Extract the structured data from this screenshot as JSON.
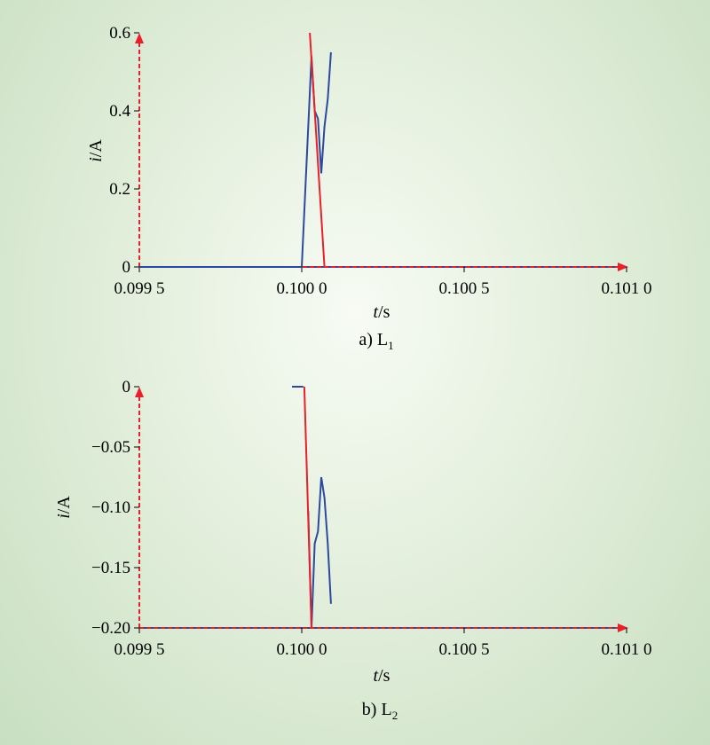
{
  "colors": {
    "series_blue": "#2b4a9e",
    "series_red": "#e8202a",
    "axis_arrow": "#e8202a"
  },
  "chart_data": [
    {
      "type": "line",
      "id": "a",
      "caption": "a) L",
      "caption_sub": "1",
      "xlabel_italic": "t",
      "xlabel_unit": "/s",
      "ylabel_italic": "i",
      "ylabel_unit": "/A",
      "xlim": [
        0.0995,
        0.101
      ],
      "ylim": [
        0,
        0.6
      ],
      "x_ticks": [
        0.0995,
        0.1,
        0.1005,
        0.101
      ],
      "x_tick_labels": [
        "0.099 5",
        "0.100 0",
        "0.100 5",
        "0.101 0"
      ],
      "y_ticks": [
        0,
        0.2,
        0.4,
        0.6
      ],
      "y_tick_labels": [
        "0",
        "0.2",
        "0.4",
        "0.6"
      ],
      "grid": false,
      "series": [
        {
          "color": "series_blue",
          "x": [
            0.0995,
            0.1,
            0.10003,
            0.10004,
            0.10005,
            0.10006,
            0.10007,
            0.10008,
            0.10009
          ],
          "y": [
            0,
            0,
            0.54,
            0.4,
            0.38,
            0.24,
            0.36,
            0.43,
            0.55
          ]
        },
        {
          "color": "series_red",
          "x": [
            0.100025,
            0.10007
          ],
          "y": [
            0.6,
            0
          ]
        }
      ]
    },
    {
      "type": "line",
      "id": "b",
      "caption": "b) L",
      "caption_sub": "2",
      "xlabel_italic": "t",
      "xlabel_unit": "/s",
      "ylabel_italic": "i",
      "ylabel_unit": "/A",
      "xlim": [
        0.0995,
        0.101
      ],
      "ylim": [
        -0.2,
        0
      ],
      "x_ticks": [
        0.0995,
        0.1,
        0.1005,
        0.101
      ],
      "x_tick_labels": [
        "0.099 5",
        "0.100 0",
        "0.100 5",
        "0.101 0"
      ],
      "y_ticks": [
        -0.2,
        -0.15,
        -0.1,
        -0.05,
        0
      ],
      "y_tick_labels": [
        "−0.20",
        "−0.15",
        "−0.10",
        "−0.05",
        "0"
      ],
      "grid": false,
      "series": [
        {
          "color": "series_blue",
          "x": [
            0.09997,
            0.100005
          ],
          "y": [
            0,
            0
          ]
        },
        {
          "color": "series_blue",
          "x": [
            0.10002,
            0.10003,
            0.10004,
            0.10005,
            0.10006,
            0.10007,
            0.10008,
            0.10009
          ],
          "y": [
            -0.103,
            -0.2,
            -0.13,
            -0.12,
            -0.075,
            -0.092,
            -0.13,
            -0.18
          ]
        },
        {
          "color": "series_red",
          "x": [
            0.100008,
            0.10003
          ],
          "y": [
            0,
            -0.2
          ]
        }
      ]
    }
  ]
}
